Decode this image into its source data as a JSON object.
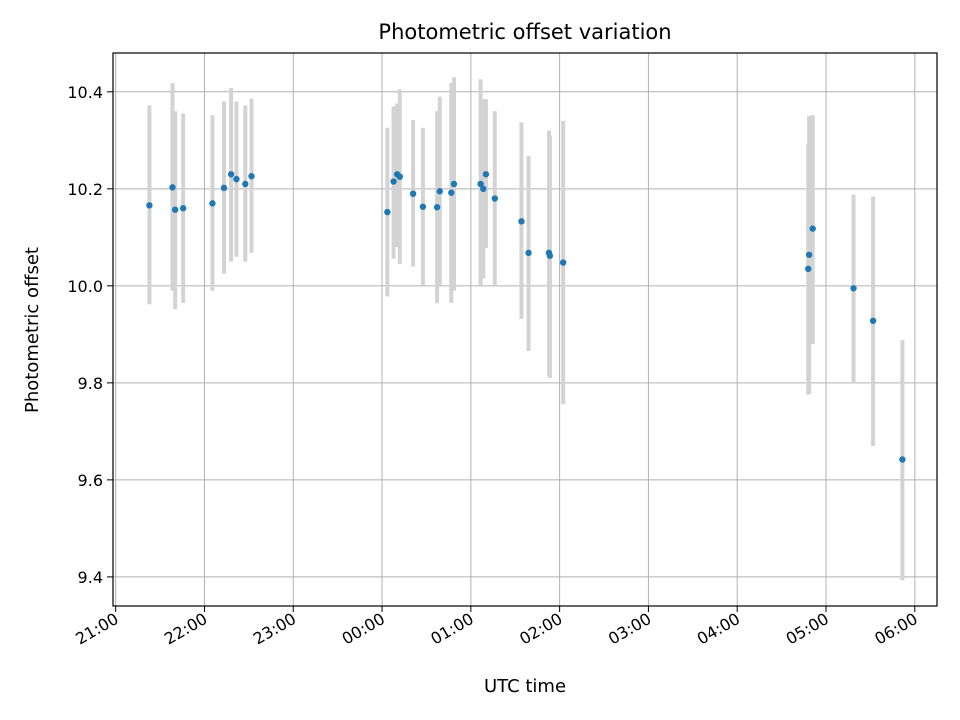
{
  "chart_data": {
    "type": "scatter",
    "title": "Photometric offset variation",
    "xlabel": "UTC time",
    "ylabel": "Photometric offset",
    "xlim": [
      -0.03,
      9.25
    ],
    "ylim": [
      9.34,
      10.48
    ],
    "x_ticks": [
      {
        "value": 0,
        "label": "21:00"
      },
      {
        "value": 1,
        "label": "22:00"
      },
      {
        "value": 2,
        "label": "23:00"
      },
      {
        "value": 3,
        "label": "00:00"
      },
      {
        "value": 4,
        "label": "01:00"
      },
      {
        "value": 5,
        "label": "02:00"
      },
      {
        "value": 6,
        "label": "03:00"
      },
      {
        "value": 7,
        "label": "04:00"
      },
      {
        "value": 8,
        "label": "05:00"
      },
      {
        "value": 9,
        "label": "06:00"
      }
    ],
    "y_ticks": [
      {
        "value": 9.4,
        "label": "9.4"
      },
      {
        "value": 9.6,
        "label": "9.6"
      },
      {
        "value": 9.8,
        "label": "9.8"
      },
      {
        "value": 10.0,
        "label": "10.0"
      },
      {
        "value": 10.2,
        "label": "10.2"
      },
      {
        "value": 10.4,
        "label": "10.4"
      }
    ],
    "grid": true,
    "point_color": "#1f77b4",
    "errorbar_color": "#d3d3d3",
    "points": [
      {
        "x": 0.38,
        "y": 10.166,
        "lo": 9.962,
        "hi": 10.372
      },
      {
        "x": 0.64,
        "y": 10.203,
        "lo": 9.99,
        "hi": 10.418
      },
      {
        "x": 0.67,
        "y": 10.157,
        "lo": 9.952,
        "hi": 10.36
      },
      {
        "x": 0.76,
        "y": 10.16,
        "lo": 9.965,
        "hi": 10.355
      },
      {
        "x": 1.09,
        "y": 10.17,
        "lo": 9.99,
        "hi": 10.352
      },
      {
        "x": 1.22,
        "y": 10.202,
        "lo": 10.025,
        "hi": 10.38
      },
      {
        "x": 1.3,
        "y": 10.23,
        "lo": 10.05,
        "hi": 10.408
      },
      {
        "x": 1.36,
        "y": 10.22,
        "lo": 10.06,
        "hi": 10.38
      },
      {
        "x": 1.46,
        "y": 10.21,
        "lo": 10.05,
        "hi": 10.372
      },
      {
        "x": 1.53,
        "y": 10.226,
        "lo": 10.068,
        "hi": 10.386
      },
      {
        "x": 3.06,
        "y": 10.152,
        "lo": 9.978,
        "hi": 10.326
      },
      {
        "x": 3.13,
        "y": 10.215,
        "lo": 10.056,
        "hi": 10.37
      },
      {
        "x": 3.17,
        "y": 10.23,
        "lo": 10.08,
        "hi": 10.376
      },
      {
        "x": 3.2,
        "y": 10.225,
        "lo": 10.045,
        "hi": 10.405
      },
      {
        "x": 3.35,
        "y": 10.19,
        "lo": 10.04,
        "hi": 10.342
      },
      {
        "x": 3.46,
        "y": 10.163,
        "lo": 10.0,
        "hi": 10.326
      },
      {
        "x": 3.62,
        "y": 10.162,
        "lo": 9.964,
        "hi": 10.36
      },
      {
        "x": 3.65,
        "y": 10.195,
        "lo": 10.0,
        "hi": 10.39
      },
      {
        "x": 3.78,
        "y": 10.192,
        "lo": 9.965,
        "hi": 10.418
      },
      {
        "x": 3.81,
        "y": 10.21,
        "lo": 9.99,
        "hi": 10.43
      },
      {
        "x": 4.11,
        "y": 10.21,
        "lo": 10.0,
        "hi": 10.426
      },
      {
        "x": 4.14,
        "y": 10.2,
        "lo": 10.015,
        "hi": 10.385
      },
      {
        "x": 4.17,
        "y": 10.23,
        "lo": 10.078,
        "hi": 10.385
      },
      {
        "x": 4.27,
        "y": 10.18,
        "lo": 10.0,
        "hi": 10.36
      },
      {
        "x": 4.57,
        "y": 10.133,
        "lo": 9.932,
        "hi": 10.337
      },
      {
        "x": 4.65,
        "y": 10.068,
        "lo": 9.866,
        "hi": 10.268
      },
      {
        "x": 4.88,
        "y": 10.068,
        "lo": 9.814,
        "hi": 10.32
      },
      {
        "x": 4.89,
        "y": 10.062,
        "lo": 9.81,
        "hi": 10.31
      },
      {
        "x": 5.04,
        "y": 10.048,
        "lo": 9.756,
        "hi": 10.34
      },
      {
        "x": 7.8,
        "y": 10.035,
        "lo": 9.776,
        "hi": 10.292
      },
      {
        "x": 7.81,
        "y": 10.064,
        "lo": 9.776,
        "hi": 10.35
      },
      {
        "x": 7.85,
        "y": 10.118,
        "lo": 9.88,
        "hi": 10.352
      },
      {
        "x": 8.31,
        "y": 9.995,
        "lo": 9.802,
        "hi": 10.188
      },
      {
        "x": 8.53,
        "y": 9.928,
        "lo": 9.67,
        "hi": 10.184
      },
      {
        "x": 8.86,
        "y": 9.642,
        "lo": 9.393,
        "hi": 9.888
      }
    ]
  }
}
